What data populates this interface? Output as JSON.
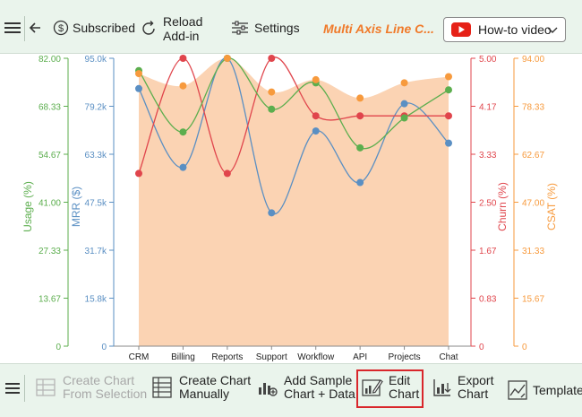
{
  "toolbar": {
    "subscribed_label": "Subscribed",
    "reload_label": "Reload\nAdd-in",
    "settings_label": "Settings",
    "brand_label": "Multi Axis Line C...",
    "howto_label": "How-to video"
  },
  "bottom_toolbar": {
    "create_selection_label": "Create Chart\nFrom Selection",
    "create_manual_label": "Create Chart\nManually",
    "add_sample_label": "Add Sample\nChart + Data",
    "edit_chart_label": "Edit\nChart",
    "export_chart_label": "Export\nChart",
    "template_label": "Template"
  },
  "icons": {
    "menu": "hamburger-menu-icon",
    "back": "back-arrow-icon",
    "subscribed": "dollar-circle-icon",
    "reload": "reload-icon",
    "settings": "sliders-icon",
    "youtube": "youtube-play-icon",
    "dropdown": "chevron-down-icon"
  },
  "colors": {
    "usage": "#5cae4e",
    "mrr": "#5a8fc3",
    "churn": "#e0454c",
    "csat": "#f79a3d",
    "csat_fill": "#fbd3b3",
    "toolbar_bg": "#eaf4ec",
    "highlight": "#d9262b"
  },
  "chart_data": {
    "type": "line",
    "categories": [
      "CRM",
      "Billing",
      "Reports",
      "Support",
      "Workflow",
      "API",
      "Projects",
      "Chat"
    ],
    "series": [
      {
        "name": "Usage (%)",
        "axis": "usage",
        "values": [
          78.5,
          61.0,
          82.0,
          67.5,
          75.0,
          56.5,
          65.0,
          73.0
        ]
      },
      {
        "name": "MRR ($)",
        "axis": "mrr",
        "values": [
          85000,
          59000,
          95000,
          44000,
          71000,
          54000,
          80000,
          67000
        ]
      },
      {
        "name": "Churn (%)",
        "axis": "churn",
        "values": [
          3.0,
          5.0,
          3.0,
          5.0,
          4.0,
          4.0,
          4.0,
          4.0
        ]
      },
      {
        "name": "CSAT (%)",
        "axis": "csat",
        "values": [
          89.0,
          85.0,
          94.0,
          83.0,
          87.0,
          81.0,
          86.0,
          88.0
        ]
      }
    ],
    "axes": {
      "usage": {
        "title": "Usage (%)",
        "min": 0,
        "max": 82,
        "ticks": [
          "0",
          "13.67",
          "27.33",
          "41.00",
          "54.67",
          "68.33",
          "82.00"
        ]
      },
      "mrr": {
        "title": "MRR ($)",
        "min": 0,
        "max": 95000,
        "ticks": [
          "0",
          "15.8k",
          "31.7k",
          "47.5k",
          "63.3k",
          "79.2k",
          "95.0k"
        ]
      },
      "churn": {
        "title": "Churn (%)",
        "min": 0,
        "max": 5,
        "ticks": [
          "0",
          "0.83",
          "1.67",
          "2.50",
          "3.33",
          "4.17",
          "5.00"
        ]
      },
      "csat": {
        "title": "CSAT (%)",
        "min": 0,
        "max": 94,
        "ticks": [
          "0",
          "15.67",
          "31.33",
          "47.00",
          "62.67",
          "78.33",
          "94.00"
        ]
      }
    },
    "grid": false,
    "legend": "none"
  }
}
